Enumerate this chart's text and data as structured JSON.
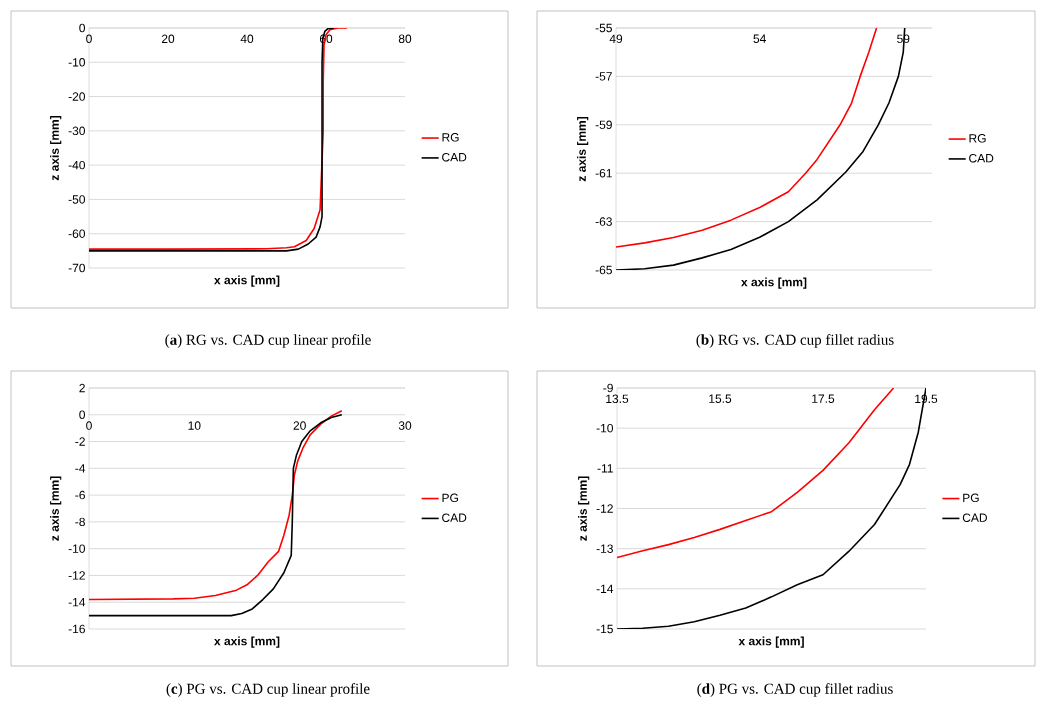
{
  "chart_data": [
    {
      "type": "line",
      "xlabel": "x axis [mm]",
      "ylabel": "z axis [mm]",
      "xlim": [
        0,
        80
      ],
      "ylim": [
        -70,
        0
      ],
      "xticks": [
        0,
        20,
        40,
        60,
        80
      ],
      "yticks": [
        -70,
        -60,
        -50,
        -40,
        -30,
        -20,
        -10,
        0
      ],
      "grid": "y",
      "legend": "right",
      "annotations": [
        "(**a**) RG vs. CAD cup linear profile"
      ],
      "series": [
        {
          "name": "RG",
          "color": "#ff0000",
          "x": [
            0,
            20,
            45,
            50,
            52,
            55,
            57,
            58.5,
            59.3,
            59.3,
            59.5,
            60,
            61,
            63,
            65.3
          ],
          "values": [
            -64.5,
            -64.5,
            -64.4,
            -64.1,
            -63.8,
            -62,
            -58.5,
            -53,
            -30,
            -15,
            -5,
            -2,
            -0.5,
            0,
            0
          ]
        },
        {
          "name": "CAD",
          "color": "#000000",
          "x": [
            0,
            20,
            50,
            53,
            55.5,
            57.5,
            58.5,
            59,
            59,
            59.2,
            59.7,
            60.5,
            62
          ],
          "values": [
            -65,
            -65,
            -65,
            -64.5,
            -63,
            -61,
            -58,
            -55,
            -10,
            -3,
            -1,
            -0.2,
            0
          ]
        }
      ]
    },
    {
      "type": "line",
      "xlabel": "x axis [mm]",
      "ylabel": "z axis [mm]",
      "xlim": [
        49,
        60
      ],
      "ylim": [
        -65,
        -55
      ],
      "xticks": [
        49,
        54,
        59
      ],
      "yticks": [
        -65,
        -63,
        -61,
        -59,
        -57,
        -55
      ],
      "grid": "y",
      "legend": "right",
      "annotations": [
        "(**b**) RG vs. CAD cup fillet radius"
      ],
      "series": [
        {
          "name": "RG",
          "color": "#ff0000",
          "x": [
            49,
            50,
            51,
            52,
            53,
            54,
            55,
            55.6,
            56,
            56.8,
            57.2,
            57.5,
            57.8,
            58.07
          ],
          "values": [
            -64.05,
            -63.88,
            -63.66,
            -63.36,
            -62.94,
            -62.42,
            -61.77,
            -61.0,
            -60.43,
            -59.0,
            -58.1,
            -57.0,
            -56.0,
            -55
          ]
        },
        {
          "name": "CAD",
          "color": "#000000",
          "x": [
            49,
            50,
            51,
            52,
            53,
            54,
            55,
            56,
            57,
            57.6,
            58.13,
            58.5,
            58.83,
            59.0,
            59.05
          ],
          "values": [
            -65,
            -64.95,
            -64.8,
            -64.5,
            -64.15,
            -63.65,
            -63.0,
            -62.1,
            -60.95,
            -60.1,
            -59,
            -58.1,
            -57,
            -56,
            -55
          ]
        }
      ]
    },
    {
      "type": "line",
      "xlabel": "x axis [mm]",
      "ylabel": "z axis [mm]",
      "xlim": [
        0,
        30
      ],
      "ylim": [
        -16,
        2
      ],
      "xticks": [
        0,
        10,
        20,
        30
      ],
      "yticks": [
        -16,
        -14,
        -12,
        -10,
        -8,
        -6,
        -4,
        -2,
        0,
        2
      ],
      "grid": "y",
      "legend": "right",
      "annotations": [
        "(**c**) PG vs. CAD cup linear profile"
      ],
      "series": [
        {
          "name": "PG",
          "color": "#ff0000",
          "x": [
            0,
            8,
            10,
            12,
            14,
            15,
            16,
            17,
            18,
            18.5,
            19,
            19.3,
            19.5,
            19.8,
            20.3,
            21,
            22,
            23,
            24
          ],
          "values": [
            -13.8,
            -13.75,
            -13.7,
            -13.5,
            -13.1,
            -12.7,
            -12.0,
            -11.0,
            -10.2,
            -9,
            -7.5,
            -6,
            -4.5,
            -3.5,
            -2.5,
            -1.5,
            -0.7,
            -0.1,
            0.3
          ]
        },
        {
          "name": "CAD",
          "color": "#000000",
          "x": [
            0,
            13.5,
            14.5,
            15.5,
            16.5,
            17.5,
            18.5,
            19.2,
            19.3,
            19.4,
            19.7,
            20.2,
            21,
            22,
            23,
            24
          ],
          "values": [
            -15,
            -15,
            -14.85,
            -14.5,
            -13.8,
            -13,
            -11.8,
            -10.5,
            -8,
            -4,
            -3,
            -2,
            -1.2,
            -0.6,
            -0.2,
            0
          ]
        }
      ]
    },
    {
      "type": "line",
      "xlabel": "x axis [mm]",
      "ylabel": "z axis [mm]",
      "xlim": [
        13.5,
        19.5
      ],
      "ylim": [
        -15,
        -9
      ],
      "xticks": [
        13.5,
        15.5,
        17.5,
        19.5
      ],
      "yticks": [
        -15,
        -14,
        -13,
        -12,
        -11,
        -10,
        -9
      ],
      "grid": "y",
      "legend": "right",
      "annotations": [
        "(**d**) PG vs. CAD cup fillet radius"
      ],
      "series": [
        {
          "name": "PG",
          "color": "#ff0000",
          "x": [
            13.5,
            14,
            14.5,
            15,
            15.5,
            16,
            16.5,
            17,
            17.5,
            18,
            18.5,
            18.87
          ],
          "values": [
            -13.22,
            -13.05,
            -12.9,
            -12.72,
            -12.52,
            -12.3,
            -12.08,
            -11.6,
            -11.05,
            -10.37,
            -9.54,
            -9
          ]
        },
        {
          "name": "CAD",
          "color": "#000000",
          "x": [
            13.5,
            14,
            14.5,
            15,
            15.5,
            16,
            16.5,
            17,
            17.5,
            18,
            18.5,
            19,
            19.18,
            19.35,
            19.5
          ],
          "values": [
            -15,
            -14.98,
            -14.93,
            -14.82,
            -14.66,
            -14.48,
            -14.2,
            -13.9,
            -13.65,
            -13.07,
            -12.4,
            -11.4,
            -10.9,
            -10.1,
            -9
          ]
        }
      ]
    }
  ]
}
